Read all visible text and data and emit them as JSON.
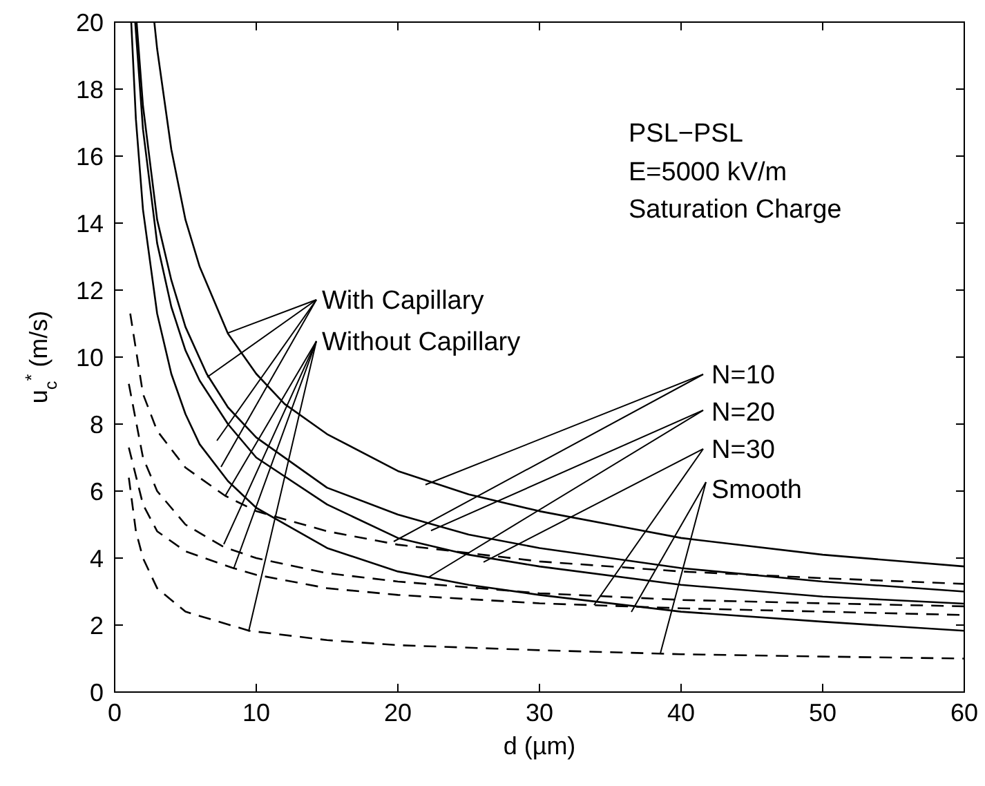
{
  "chart_data": {
    "type": "line",
    "xlabel": "d (µm)",
    "ylabel": "u$_{c}$$^{*}$ (m/s)",
    "xlim": [
      0,
      60
    ],
    "xticks": [
      0,
      10,
      20,
      30,
      40,
      50,
      60
    ],
    "ylim": [
      0,
      20
    ],
    "yticks": [
      0,
      2,
      4,
      6,
      8,
      10,
      12,
      14,
      16,
      18,
      20
    ],
    "annotations": [
      "PSL−PSL",
      "E=5000 kV/m",
      "Saturation Charge",
      {
        "text": "With Capillary",
        "x": 8.0,
        "y": 10.72
      },
      {
        "text": "Without Capillary",
        "x": 9.46,
        "y": 1.81
      },
      {
        "text": "N=10",
        "x": 21.95,
        "y": 6.19
      },
      {
        "text": "N=20",
        "x": 22.34,
        "y": 4.82
      },
      {
        "text": "N=30",
        "x": 26.05,
        "y": 3.88
      },
      {
        "text": "Smooth",
        "x": 36.49,
        "y": 2.39
      }
    ],
    "series": [
      {
        "color": "#000000",
        "line_style": "solid",
        "x": [
          2.8,
          3,
          4,
          5,
          6,
          8,
          10,
          12,
          15,
          20,
          25,
          30,
          40,
          50,
          60
        ],
        "values": [
          20,
          19.2,
          16.2,
          14.1,
          12.7,
          10.7,
          9.5,
          8.6,
          7.7,
          6.6,
          5.9,
          5.4,
          4.6,
          4.1,
          3.75
        ]
      },
      {
        "color": "#000000",
        "line_style": "solid",
        "x": [
          1.55,
          2,
          3,
          4,
          5,
          6.5,
          8,
          10,
          15,
          20,
          25,
          30,
          40,
          50,
          60
        ],
        "values": [
          20,
          17.5,
          14.1,
          12.3,
          10.9,
          9.5,
          8.5,
          7.6,
          6.1,
          5.3,
          4.7,
          4.3,
          3.7,
          3.3,
          3.0
        ]
      },
      {
        "color": "#000000",
        "line_style": "solid",
        "x": [
          1.45,
          2,
          3,
          4,
          5,
          6,
          8,
          10,
          15,
          20,
          25,
          30,
          40,
          50,
          60
        ],
        "values": [
          20,
          16.8,
          13.4,
          11.5,
          10.2,
          9.3,
          8.0,
          7.0,
          5.6,
          4.6,
          4.1,
          3.75,
          3.2,
          2.85,
          2.64
        ]
      },
      {
        "color": "#000000",
        "line_style": "solid",
        "x": [
          1.17,
          1.5,
          2,
          3,
          4,
          5,
          6,
          8,
          10,
          15,
          20,
          25,
          30,
          40,
          50,
          60
        ],
        "values": [
          20,
          17.1,
          14.4,
          11.3,
          9.5,
          8.3,
          7.4,
          6.3,
          5.5,
          4.3,
          3.6,
          3.2,
          2.9,
          2.4,
          2.1,
          1.83
        ]
      },
      {
        "color": "#000000",
        "line_style": "dashed",
        "x": [
          1.1,
          2,
          3,
          5,
          7.8,
          10,
          15,
          20,
          30,
          40,
          50,
          60
        ],
        "values": [
          11.3,
          8.9,
          7.8,
          6.7,
          5.86,
          5.4,
          4.8,
          4.4,
          3.9,
          3.6,
          3.4,
          3.23
        ]
      },
      {
        "color": "#000000",
        "line_style": "dashed",
        "x": [
          1,
          2,
          3,
          5,
          7.7,
          10,
          15,
          20,
          30,
          40,
          50,
          60
        ],
        "values": [
          9.2,
          7.0,
          6.0,
          5.0,
          4.33,
          4.0,
          3.55,
          3.3,
          2.95,
          2.75,
          2.65,
          2.56
        ]
      },
      {
        "color": "#000000",
        "line_style": "dashed",
        "x": [
          1,
          2,
          3,
          5,
          8.3,
          10,
          15,
          20,
          30,
          40,
          50,
          60
        ],
        "values": [
          7.3,
          5.6,
          4.8,
          4.2,
          3.71,
          3.5,
          3.1,
          2.9,
          2.65,
          2.5,
          2.4,
          2.3
        ]
      },
      {
        "color": "#000000",
        "line_style": "dashed",
        "x": [
          1,
          1.5,
          2,
          3,
          5,
          9.5,
          15,
          20,
          30,
          40,
          50,
          60
        ],
        "values": [
          6.4,
          4.8,
          4.0,
          3.1,
          2.4,
          1.83,
          1.55,
          1.4,
          1.25,
          1.13,
          1.06,
          1.0
        ]
      }
    ]
  }
}
